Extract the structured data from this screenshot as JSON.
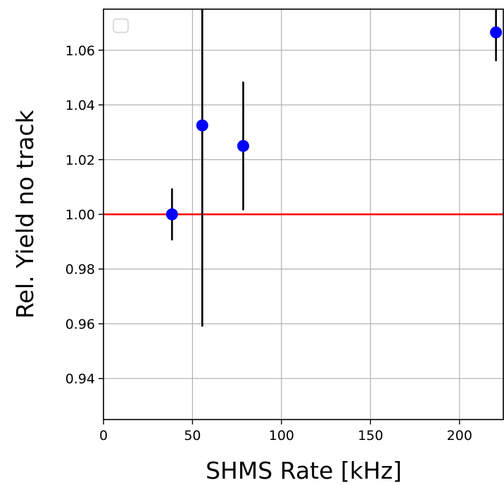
{
  "chart_data": {
    "type": "scatter",
    "title": "",
    "xlabel": "SHMS Rate [kHz]",
    "ylabel": "Rel. Yield no track",
    "xlim": [
      0,
      225
    ],
    "ylim": [
      0.925,
      1.075
    ],
    "xticks": [
      0,
      50,
      100,
      150,
      200
    ],
    "xtick_labels": [
      "0",
      "50",
      "100",
      "150",
      "200"
    ],
    "yticks": [
      0.94,
      0.96,
      0.98,
      1.0,
      1.02,
      1.04,
      1.06
    ],
    "ytick_labels": [
      "0.94",
      "0.96",
      "0.98",
      "1.00",
      "1.02",
      "1.04",
      "1.06"
    ],
    "grid": true,
    "legend": "top-left (empty)",
    "reference_line": {
      "y": 1.0,
      "color": "#ff0000"
    },
    "series": [
      {
        "marker_color": "#0000ff",
        "errorbar_color": "#000000",
        "points": [
          {
            "x": 38.5,
            "y": 1.0,
            "err": 0.0095
          },
          {
            "x": 55.5,
            "y": 1.0325,
            "err": 0.0735
          },
          {
            "x": 78.5,
            "y": 1.025,
            "err": 0.0235
          },
          {
            "x": 220.5,
            "y": 1.0665,
            "err": 0.0105
          }
        ]
      }
    ]
  }
}
